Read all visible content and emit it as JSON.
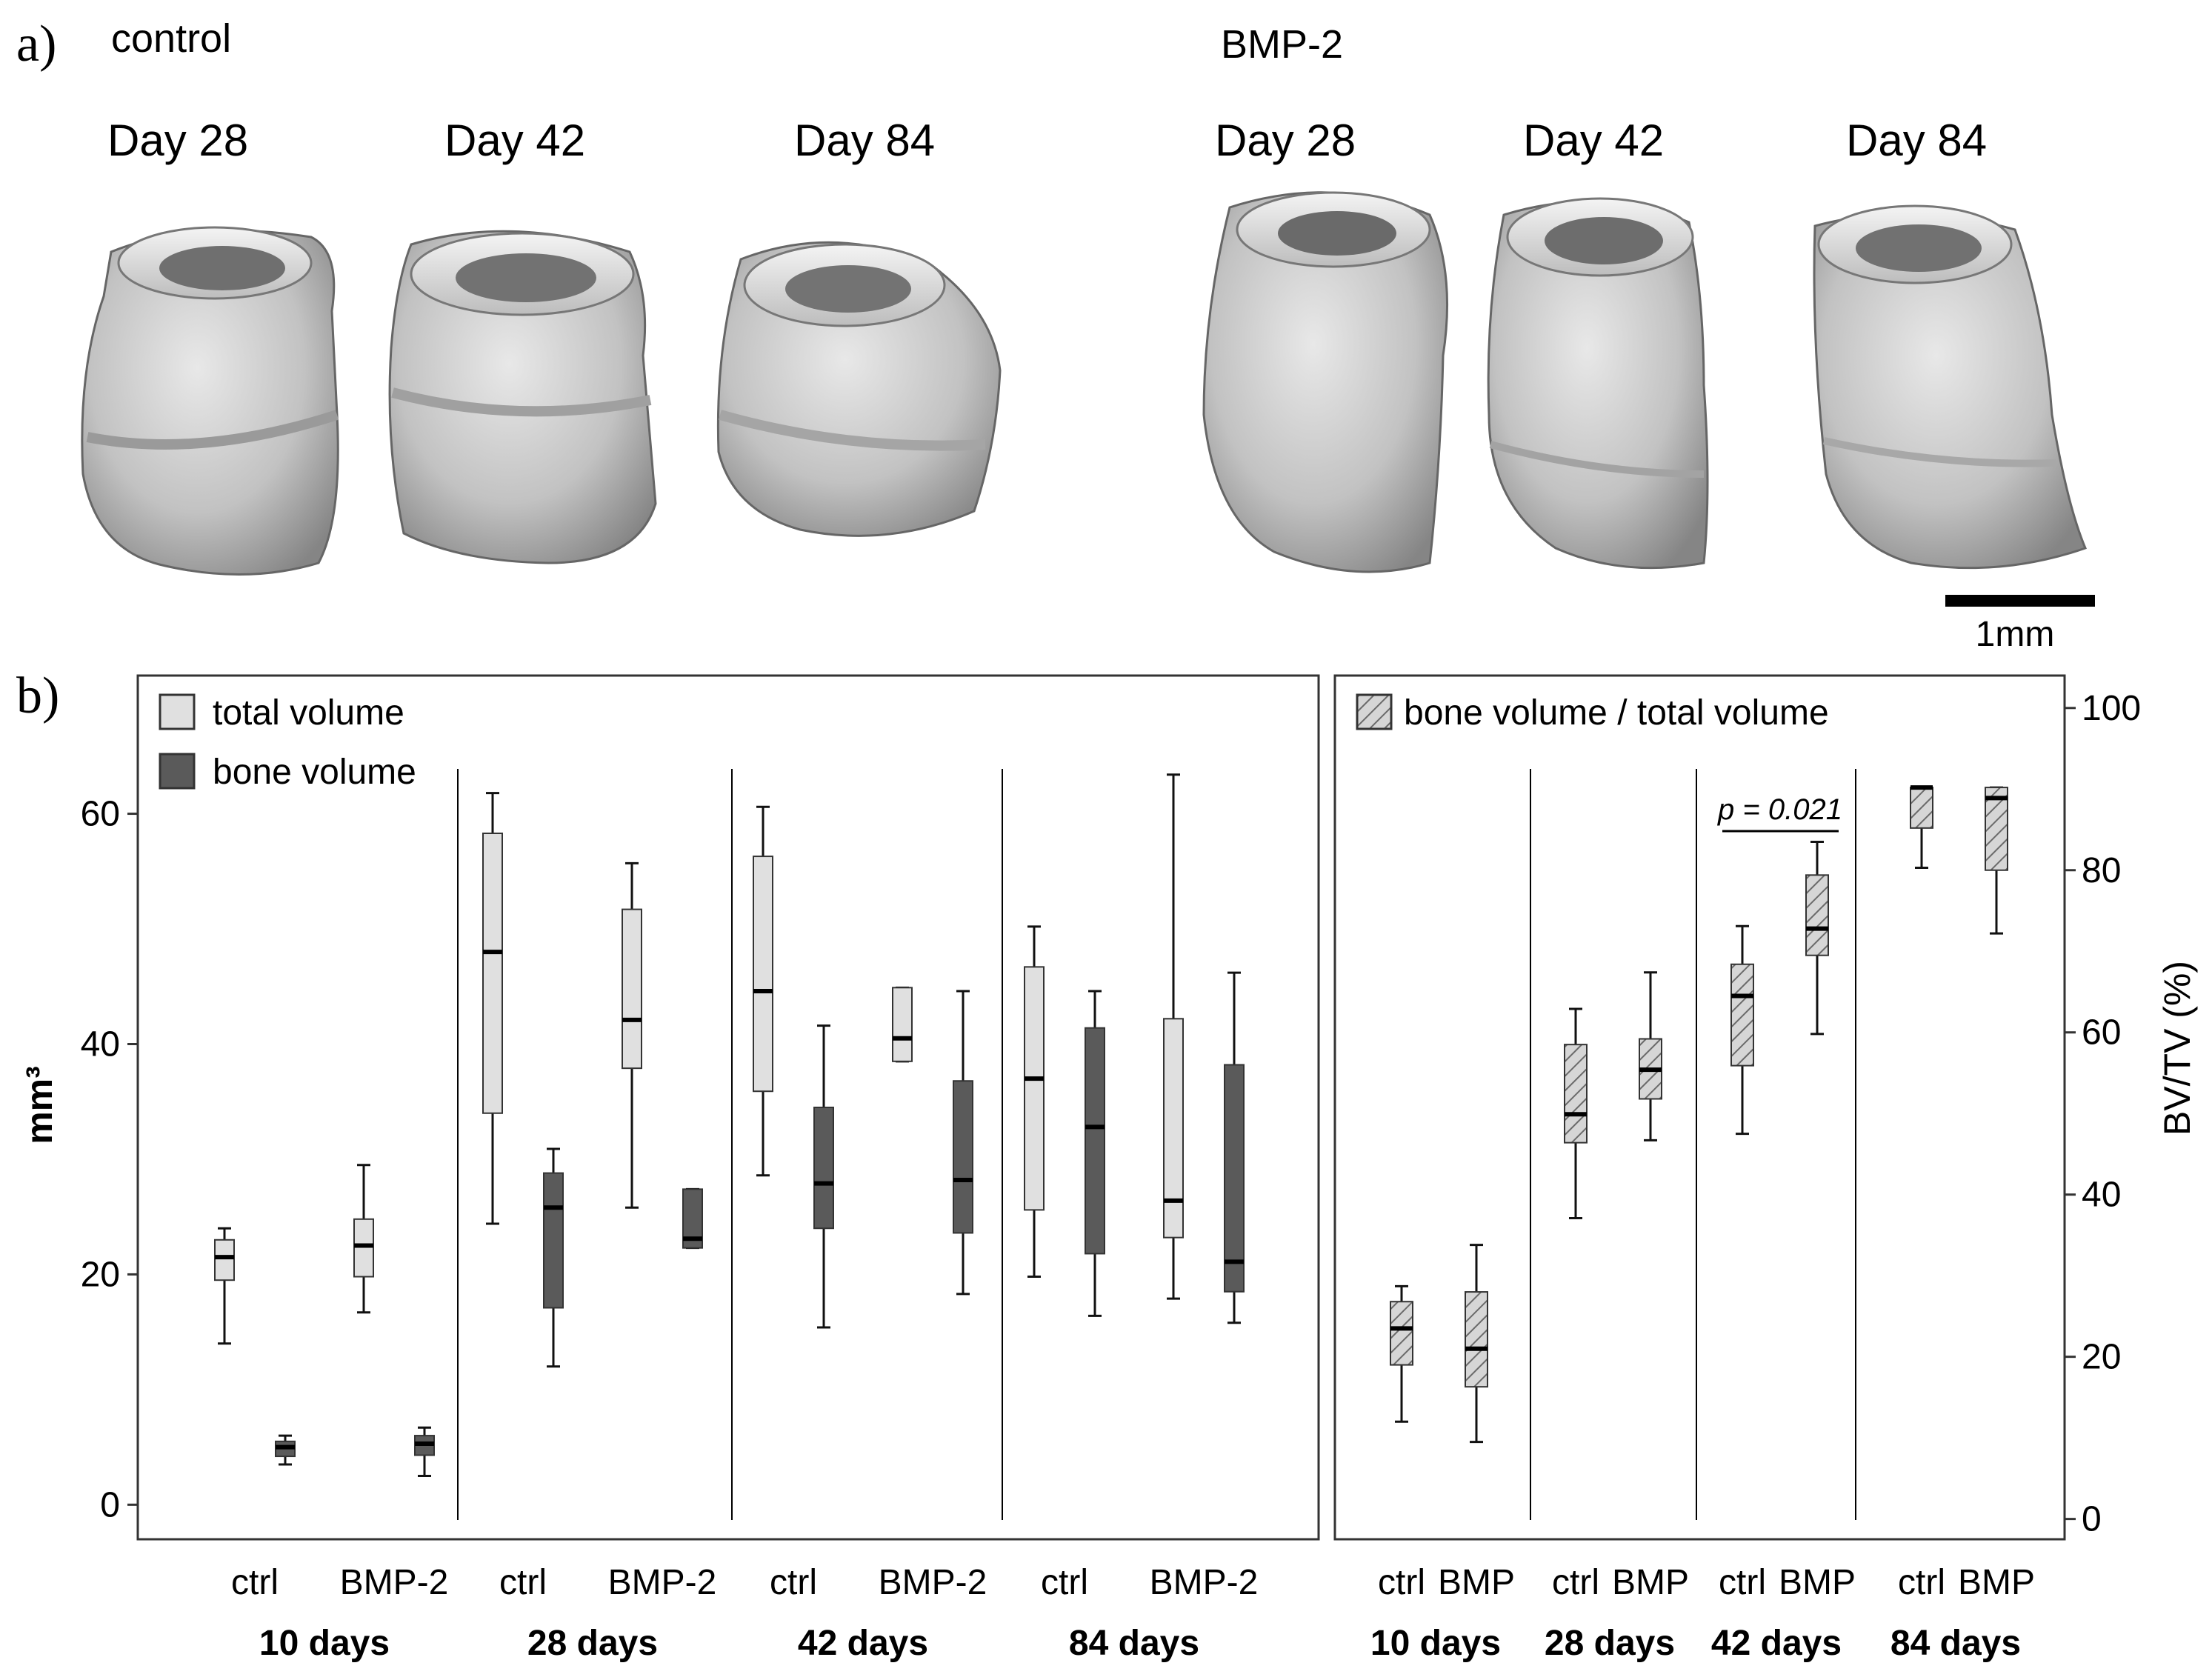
{
  "panel_a": {
    "letter": "a)",
    "groups": [
      {
        "label": "control",
        "days": [
          "Day 28",
          "Day 42",
          "Day 84"
        ]
      },
      {
        "label": "BMP-2",
        "days": [
          "Day 28",
          "Day 42",
          "Day 84"
        ]
      }
    ],
    "scale_bar_label": "1mm"
  },
  "panel_b_letter": "b)",
  "chart_data": [
    {
      "type": "boxplot",
      "ylabel": "mm³",
      "ylim": [
        -3,
        72
      ],
      "yticks": [
        0,
        20,
        40,
        60
      ],
      "legend": [
        {
          "label": "total volume",
          "color": "#e0e0e0"
        },
        {
          "label": "bone volume",
          "color": "#5a5a5a"
        }
      ],
      "groups": [
        "10 days",
        "28 days",
        "42 days",
        "84 days"
      ],
      "categories": [
        "ctrl",
        "BMP-2"
      ],
      "boxes": [
        {
          "group": "10 days",
          "cat": "ctrl",
          "series": "total volume",
          "min": 14,
          "q1": 19.5,
          "median": 21.5,
          "q3": 23,
          "max": 24
        },
        {
          "group": "10 days",
          "cat": "ctrl",
          "series": "bone volume",
          "min": 3.5,
          "q1": 4.2,
          "median": 5,
          "q3": 5.5,
          "max": 6
        },
        {
          "group": "10 days",
          "cat": "BMP-2",
          "series": "total volume",
          "min": 16.7,
          "q1": 19.8,
          "median": 22.5,
          "q3": 24.8,
          "max": 29.5
        },
        {
          "group": "10 days",
          "cat": "BMP-2",
          "series": "bone volume",
          "min": 2.5,
          "q1": 4.3,
          "median": 5.3,
          "q3": 6,
          "max": 6.7
        },
        {
          "group": "28 days",
          "cat": "ctrl",
          "series": "total volume",
          "min": 24.4,
          "q1": 34,
          "median": 48,
          "q3": 58.3,
          "max": 61.8
        },
        {
          "group": "28 days",
          "cat": "ctrl",
          "series": "bone volume",
          "min": 12,
          "q1": 17.1,
          "median": 25.8,
          "q3": 28.8,
          "max": 30.9
        },
        {
          "group": "28 days",
          "cat": "BMP-2",
          "series": "total volume",
          "min": 25.8,
          "q1": 37.9,
          "median": 42.1,
          "q3": 51.7,
          "max": 55.7
        },
        {
          "group": "28 days",
          "cat": "BMP-2",
          "series": "bone volume",
          "min": 22.3,
          "q1": 22.3,
          "median": 23.1,
          "q3": 27.4,
          "max": 27.4
        },
        {
          "group": "42 days",
          "cat": "ctrl",
          "series": "total volume",
          "min": 28.6,
          "q1": 35.9,
          "median": 44.6,
          "q3": 56.3,
          "max": 60.6
        },
        {
          "group": "42 days",
          "cat": "ctrl",
          "series": "bone volume",
          "min": 15.4,
          "q1": 24,
          "median": 27.9,
          "q3": 34.5,
          "max": 41.6
        },
        {
          "group": "42 days",
          "cat": "BMP-2",
          "series": "total volume",
          "min": 38.5,
          "q1": 38.5,
          "median": 40.5,
          "q3": 44.9,
          "max": 44.9
        },
        {
          "group": "42 days",
          "cat": "BMP-2",
          "series": "bone volume",
          "min": 18.3,
          "q1": 23.6,
          "median": 28.2,
          "q3": 36.8,
          "max": 44.6
        },
        {
          "group": "84 days",
          "cat": "ctrl",
          "series": "total volume",
          "min": 19.8,
          "q1": 25.6,
          "median": 37,
          "q3": 46.7,
          "max": 50.2
        },
        {
          "group": "84 days",
          "cat": "ctrl",
          "series": "bone volume",
          "min": 16.4,
          "q1": 21.8,
          "median": 32.8,
          "q3": 41.4,
          "max": 44.6
        },
        {
          "group": "84 days",
          "cat": "BMP-2",
          "series": "total volume",
          "min": 17.9,
          "q1": 23.2,
          "median": 26.4,
          "q3": 42.2,
          "max": 63.4
        },
        {
          "group": "84 days",
          "cat": "BMP-2",
          "series": "bone volume",
          "min": 15.8,
          "q1": 18.5,
          "median": 21.1,
          "q3": 38.2,
          "max": 46.2
        }
      ]
    },
    {
      "type": "boxplot",
      "ylabel": "BV/TV (%)",
      "ylim": [
        -2.5,
        104
      ],
      "yticks": [
        0,
        20,
        40,
        60,
        80,
        100
      ],
      "legend": [
        {
          "label": "bone volume / total volume",
          "pattern": "hatched"
        }
      ],
      "groups": [
        "10 days",
        "28 days",
        "42 days",
        "84 days"
      ],
      "categories": [
        "ctrl",
        "BMP"
      ],
      "annotation": {
        "text": "p = 0.021",
        "between": [
          "42 days ctrl",
          "42 days BMP"
        ]
      },
      "boxes": [
        {
          "group": "10 days",
          "cat": "ctrl",
          "min": 12,
          "q1": 19,
          "median": 23.5,
          "q3": 26.8,
          "max": 28.7
        },
        {
          "group": "10 days",
          "cat": "BMP",
          "min": 9.5,
          "q1": 16.3,
          "median": 21,
          "q3": 28,
          "max": 33.8
        },
        {
          "group": "28 days",
          "cat": "ctrl",
          "min": 37.1,
          "q1": 46.4,
          "median": 49.9,
          "q3": 58.5,
          "max": 62.9
        },
        {
          "group": "28 days",
          "cat": "BMP",
          "min": 46.7,
          "q1": 51.8,
          "median": 55.4,
          "q3": 59.2,
          "max": 67.4
        },
        {
          "group": "42 days",
          "cat": "ctrl",
          "min": 47.5,
          "q1": 55.9,
          "median": 64.5,
          "q3": 68.4,
          "max": 73.1
        },
        {
          "group": "42 days",
          "cat": "BMP",
          "min": 59.8,
          "q1": 69.5,
          "median": 72.8,
          "q3": 79.4,
          "max": 83.5
        },
        {
          "group": "84 days",
          "cat": "ctrl",
          "min": 80.3,
          "q1": 85.2,
          "median": 90.2,
          "q3": 90.2,
          "max": 90.2
        },
        {
          "group": "84 days",
          "cat": "BMP",
          "min": 72.2,
          "q1": 80,
          "median": 88.9,
          "q3": 90.2,
          "max": 90.2
        }
      ]
    }
  ]
}
